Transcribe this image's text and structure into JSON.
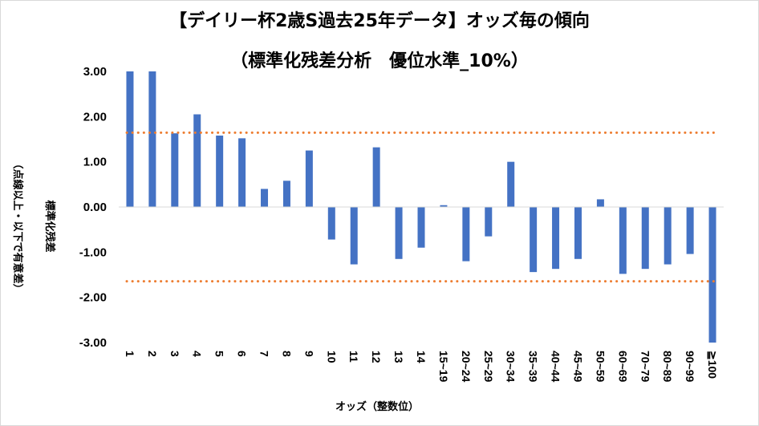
{
  "chart_data": {
    "type": "bar",
    "title": "【デイリー杯2歳S過去25年データ】オッズ毎の傾向",
    "subtitle": "（標準化残差分析　優位水準_10%）",
    "xlabel": "オッズ（整数位）",
    "ylabel": "標準化残差",
    "ylabel2": "（点線以上・以下で有意差）",
    "ylim": [
      -3.0,
      3.0
    ],
    "yticks": [
      "3.00",
      "2.00",
      "1.00",
      "0.00",
      "-1.00",
      "-2.00",
      "-3.00"
    ],
    "ytick_values": [
      3,
      2,
      1,
      0,
      -1,
      -2,
      -3
    ],
    "categories": [
      "1",
      "2",
      "3",
      "4",
      "5",
      "6",
      "7",
      "8",
      "9",
      "10",
      "11",
      "12",
      "13",
      "14",
      "15~19",
      "20~24",
      "25~29",
      "30~34",
      "35~39",
      "40~44",
      "45~49",
      "50~59",
      "60~69",
      "70~79",
      "80~89",
      "90~99",
      "≧100"
    ],
    "values": [
      3.0,
      3.0,
      1.63,
      2.05,
      1.58,
      1.52,
      0.4,
      0.58,
      1.25,
      -0.72,
      -1.27,
      1.32,
      -1.15,
      -0.9,
      0.04,
      -1.2,
      -0.65,
      1.0,
      -1.44,
      -1.37,
      -1.15,
      0.17,
      -1.48,
      -1.37,
      -1.27,
      -1.04,
      -3.0
    ],
    "threshold_lines": [
      1.645,
      -1.645
    ],
    "grid": false,
    "legend": "none",
    "colors": {
      "bar": "#4472c4",
      "threshold": "#ed7d31"
    }
  }
}
